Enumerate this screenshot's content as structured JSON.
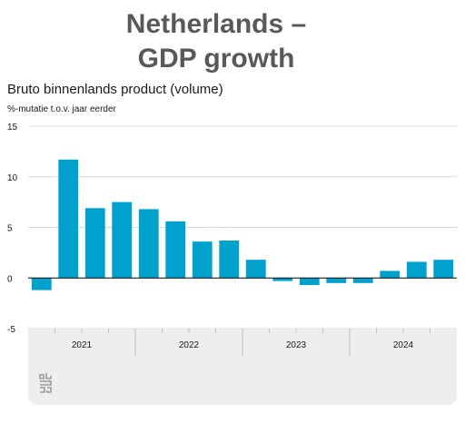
{
  "header": {
    "title_line1": "Netherlands –",
    "title_line2": "GDP growth"
  },
  "chart_data": {
    "type": "bar",
    "title": "Bruto binnenlands product (volume)",
    "ylabel": "%-mutatie t.o.v. jaar eerder",
    "xlabel": "",
    "ylim": [
      -5,
      15
    ],
    "yticks": [
      15,
      10,
      5,
      0,
      -5
    ],
    "grid": true,
    "color": "#00a1cd",
    "year_groups": [
      {
        "label": "2021",
        "count": 4
      },
      {
        "label": "2022",
        "count": 4
      },
      {
        "label": "2023",
        "count": 4
      },
      {
        "label": "2024",
        "count": 4
      }
    ],
    "values": [
      -1.2,
      11.7,
      6.9,
      7.5,
      6.8,
      5.6,
      3.6,
      3.7,
      1.8,
      -0.3,
      -0.7,
      -0.5,
      -0.5,
      0.7,
      1.6,
      1.8
    ]
  }
}
